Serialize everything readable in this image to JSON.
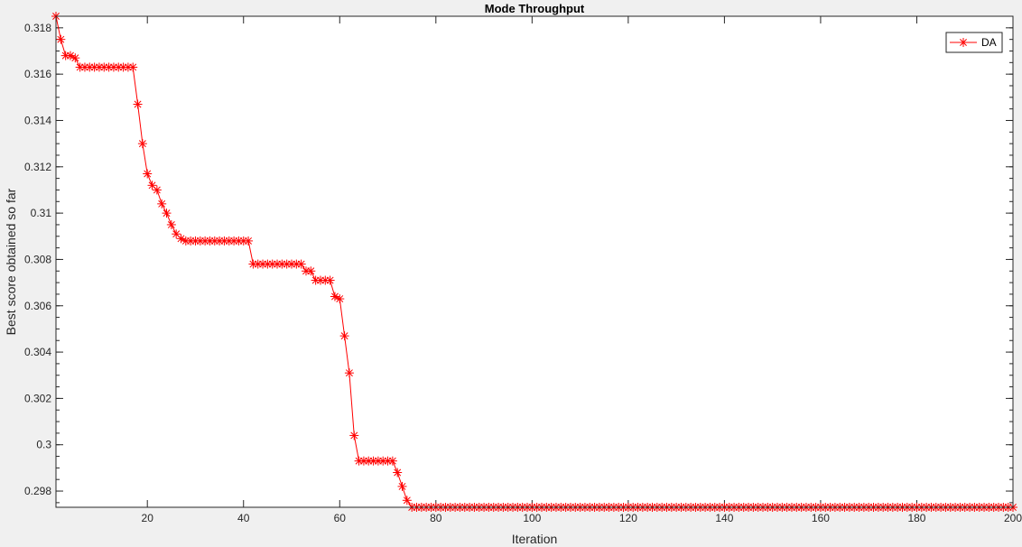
{
  "chart_data": {
    "type": "line",
    "title": "Mode Throughput",
    "xlabel": "Iteration",
    "ylabel": "Best score obtained so far",
    "xlim": [
      1,
      200
    ],
    "ylim": [
      0.2973,
      0.3185
    ],
    "xticks": [
      20,
      40,
      60,
      80,
      100,
      120,
      140,
      160,
      180,
      200
    ],
    "xtick_labels": [
      "20",
      "40",
      "60",
      "80",
      "100",
      "120",
      "140",
      "160",
      "180",
      "200"
    ],
    "yticks": [
      0.298,
      0.3,
      0.302,
      0.304,
      0.306,
      0.308,
      0.31,
      0.312,
      0.314,
      0.316,
      0.318
    ],
    "ytick_labels": [
      "0.298",
      "0.3",
      "0.302",
      "0.304",
      "0.306",
      "0.308",
      "0.31",
      "0.312",
      "0.314",
      "0.316",
      "0.318"
    ],
    "grid": false,
    "legend_position": "top-right",
    "series": [
      {
        "name": "DA",
        "color": "#ff0000",
        "marker": "asterisk",
        "x": [
          1,
          2,
          3,
          4,
          5,
          6,
          7,
          8,
          9,
          10,
          11,
          12,
          13,
          14,
          15,
          16,
          17,
          18,
          19,
          20,
          21,
          22,
          23,
          24,
          25,
          26,
          27,
          28,
          29,
          30,
          31,
          32,
          33,
          34,
          35,
          36,
          37,
          38,
          39,
          40,
          41,
          42,
          43,
          44,
          45,
          46,
          47,
          48,
          49,
          50,
          51,
          52,
          53,
          54,
          55,
          56,
          57,
          58,
          59,
          60,
          61,
          62,
          63,
          64,
          65,
          66,
          67,
          68,
          69,
          70,
          71,
          72,
          73,
          74,
          75,
          76,
          77,
          78,
          79,
          80,
          81,
          82,
          83,
          84,
          85,
          86,
          87,
          88,
          89,
          90,
          91,
          92,
          93,
          94,
          95,
          96,
          97,
          98,
          99,
          100,
          101,
          102,
          103,
          104,
          105,
          106,
          107,
          108,
          109,
          110,
          111,
          112,
          113,
          114,
          115,
          116,
          117,
          118,
          119,
          120,
          121,
          122,
          123,
          124,
          125,
          126,
          127,
          128,
          129,
          130,
          131,
          132,
          133,
          134,
          135,
          136,
          137,
          138,
          139,
          140,
          141,
          142,
          143,
          144,
          145,
          146,
          147,
          148,
          149,
          150,
          151,
          152,
          153,
          154,
          155,
          156,
          157,
          158,
          159,
          160,
          161,
          162,
          163,
          164,
          165,
          166,
          167,
          168,
          169,
          170,
          171,
          172,
          173,
          174,
          175,
          176,
          177,
          178,
          179,
          180,
          181,
          182,
          183,
          184,
          185,
          186,
          187,
          188,
          189,
          190,
          191,
          192,
          193,
          194,
          195,
          196,
          197,
          198,
          199,
          200
        ],
        "y": [
          0.3185,
          0.3175,
          0.3168,
          0.3168,
          0.3167,
          0.3163,
          0.3163,
          0.3163,
          0.3163,
          0.3163,
          0.3163,
          0.3163,
          0.3163,
          0.3163,
          0.3163,
          0.3163,
          0.3163,
          0.3147,
          0.313,
          0.3117,
          0.3112,
          0.311,
          0.3104,
          0.31,
          0.3095,
          0.3091,
          0.3089,
          0.3088,
          0.3088,
          0.3088,
          0.3088,
          0.3088,
          0.3088,
          0.3088,
          0.3088,
          0.3088,
          0.3088,
          0.3088,
          0.3088,
          0.3088,
          0.3088,
          0.3078,
          0.3078,
          0.3078,
          0.3078,
          0.3078,
          0.3078,
          0.3078,
          0.3078,
          0.3078,
          0.3078,
          0.3078,
          0.3075,
          0.3075,
          0.3071,
          0.3071,
          0.3071,
          0.3071,
          0.3064,
          0.3063,
          0.3047,
          0.3031,
          0.3004,
          0.2993,
          0.2993,
          0.2993,
          0.2993,
          0.2993,
          0.2993,
          0.2993,
          0.2993,
          0.2988,
          0.2982,
          0.2976,
          0.2973,
          0.2973,
          0.2973,
          0.2973,
          0.2973,
          0.2973,
          0.2973,
          0.2973,
          0.2973,
          0.2973,
          0.2973,
          0.2973,
          0.2973,
          0.2973,
          0.2973,
          0.2973,
          0.2973,
          0.2973,
          0.2973,
          0.2973,
          0.2973,
          0.2973,
          0.2973,
          0.2973,
          0.2973,
          0.2973,
          0.2973,
          0.2973,
          0.2973,
          0.2973,
          0.2973,
          0.2973,
          0.2973,
          0.2973,
          0.2973,
          0.2973,
          0.2973,
          0.2973,
          0.2973,
          0.2973,
          0.2973,
          0.2973,
          0.2973,
          0.2973,
          0.2973,
          0.2973,
          0.2973,
          0.2973,
          0.2973,
          0.2973,
          0.2973,
          0.2973,
          0.2973,
          0.2973,
          0.2973,
          0.2973,
          0.2973,
          0.2973,
          0.2973,
          0.2973,
          0.2973,
          0.2973,
          0.2973,
          0.2973,
          0.2973,
          0.2973,
          0.2973,
          0.2973,
          0.2973,
          0.2973,
          0.2973,
          0.2973,
          0.2973,
          0.2973,
          0.2973,
          0.2973,
          0.2973,
          0.2973,
          0.2973,
          0.2973,
          0.2973,
          0.2973,
          0.2973,
          0.2973,
          0.2973,
          0.2973,
          0.2973,
          0.2973,
          0.2973,
          0.2973,
          0.2973,
          0.2973,
          0.2973,
          0.2973,
          0.2973,
          0.2973,
          0.2973,
          0.2973,
          0.2973,
          0.2973,
          0.2973,
          0.2973,
          0.2973,
          0.2973,
          0.2973,
          0.2973,
          0.2973,
          0.2973,
          0.2973,
          0.2973,
          0.2973,
          0.2973,
          0.2973,
          0.2973,
          0.2973,
          0.2973,
          0.2973,
          0.2973,
          0.2973,
          0.2973,
          0.2973,
          0.2973,
          0.2973,
          0.2973,
          0.2973,
          0.2973
        ]
      }
    ]
  }
}
